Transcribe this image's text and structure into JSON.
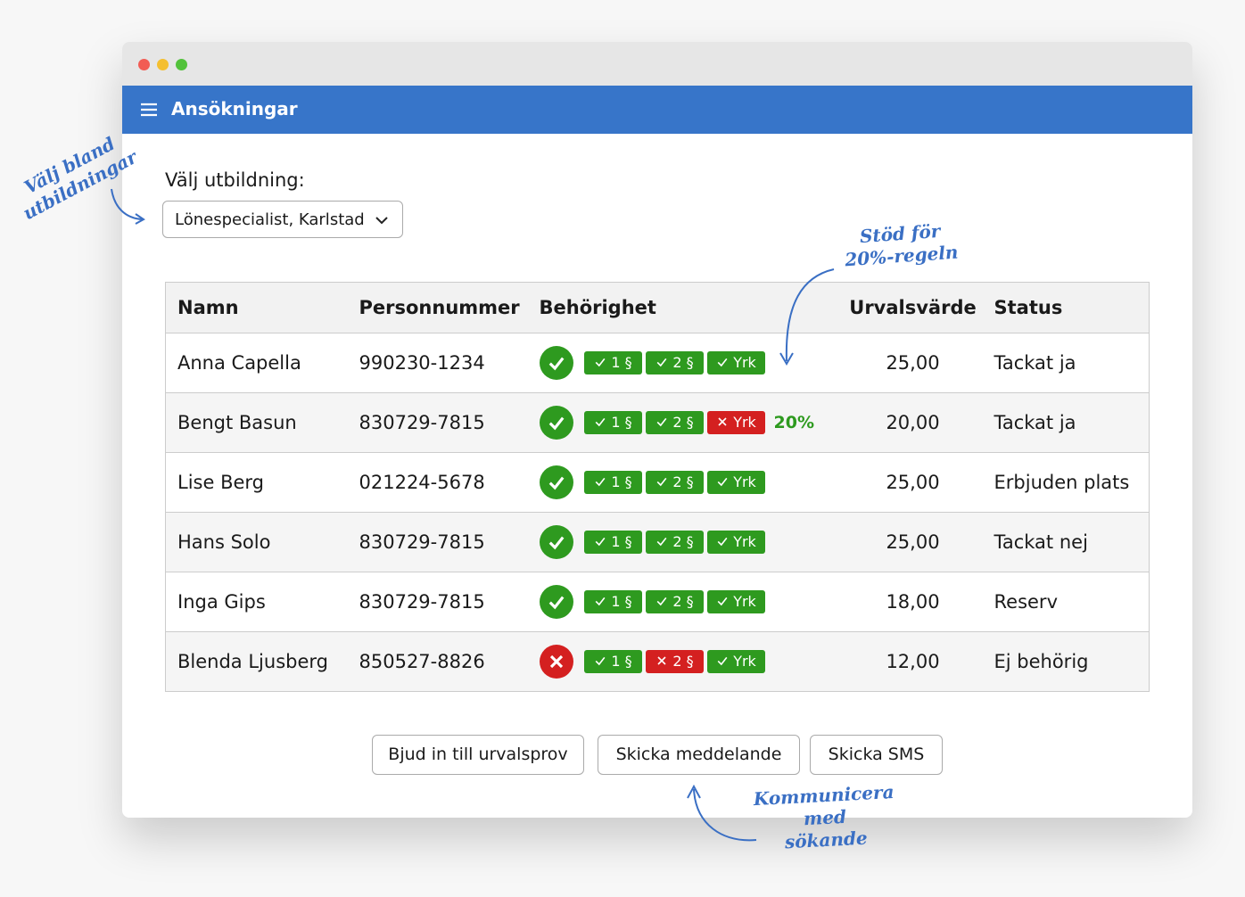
{
  "window": {
    "title": "Ansökningar"
  },
  "form": {
    "label": "Välj utbildning:",
    "selected": "Lönespecialist, Karlstad"
  },
  "table": {
    "headers": [
      "Namn",
      "Personnummer",
      "Behörighet",
      "Urvalsvärde",
      "Status"
    ],
    "rows": [
      {
        "name": "Anna Capella",
        "pnr": "990230-1234",
        "eligible": true,
        "badges": [
          {
            "label": "1 §",
            "ok": true
          },
          {
            "label": "2 §",
            "ok": true
          },
          {
            "label": "Yrk",
            "ok": true
          }
        ],
        "value": "25,00",
        "status": "Tackat ja"
      },
      {
        "name": "Bengt Basun",
        "pnr": "830729-7815",
        "eligible": true,
        "badges": [
          {
            "label": "1 §",
            "ok": true
          },
          {
            "label": "2 §",
            "ok": true
          },
          {
            "label": "Yrk",
            "ok": false
          }
        ],
        "note": "20%",
        "value": "20,00",
        "status": "Tackat ja"
      },
      {
        "name": "Lise Berg",
        "pnr": "021224-5678",
        "eligible": true,
        "badges": [
          {
            "label": "1 §",
            "ok": true
          },
          {
            "label": "2 §",
            "ok": true
          },
          {
            "label": "Yrk",
            "ok": true
          }
        ],
        "value": "25,00",
        "status": "Erbjuden plats"
      },
      {
        "name": "Hans Solo",
        "pnr": "830729-7815",
        "eligible": true,
        "badges": [
          {
            "label": "1 §",
            "ok": true
          },
          {
            "label": "2 §",
            "ok": true
          },
          {
            "label": "Yrk",
            "ok": true
          }
        ],
        "value": "25,00",
        "status": "Tackat nej"
      },
      {
        "name": "Inga Gips",
        "pnr": "830729-7815",
        "eligible": true,
        "badges": [
          {
            "label": "1 §",
            "ok": true
          },
          {
            "label": "2 §",
            "ok": true
          },
          {
            "label": "Yrk",
            "ok": true
          }
        ],
        "value": "18,00",
        "status": "Reserv"
      },
      {
        "name": "Blenda Ljusberg",
        "pnr": "850527-8826",
        "eligible": false,
        "badges": [
          {
            "label": "1 §",
            "ok": true
          },
          {
            "label": "2 §",
            "ok": false
          },
          {
            "label": "Yrk",
            "ok": true
          }
        ],
        "value": "12,00",
        "status": "Ej behörig"
      }
    ]
  },
  "buttons": [
    "Bjud in till urvalsprov",
    "Skicka meddelande",
    "Skicka SMS"
  ],
  "annotations": {
    "select": [
      "Välj bland",
      "utbildningar"
    ],
    "rule": [
      "Stöd för",
      "20%-regeln"
    ],
    "communicate": [
      "Kommunicera",
      "med",
      "sökande"
    ]
  }
}
